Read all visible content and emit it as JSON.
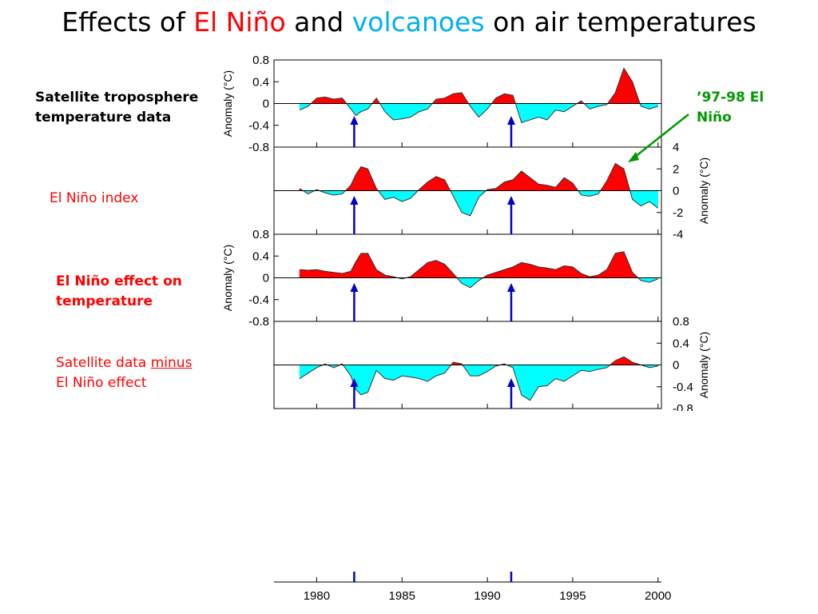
{
  "slide": {
    "title_prefix": "Effects of ",
    "title_elnino": "El Niño",
    "title_and": " and ",
    "title_volcanoes": "volcanoes",
    "title_suffix": " on air temperatures"
  },
  "labels": {
    "satellite_line1": "Satellite troposphere",
    "satellite_line2": "temperature data",
    "elnino_index": "El Niño index",
    "effect_line1": "El Niño effect on",
    "effect_line2": "temperature",
    "minus_part1": "Satellite data ",
    "minus_part2": "minus",
    "minus_line2": "El Niño effect",
    "callout_line1": "’97-98 El",
    "callout_line2": "Niño"
  },
  "colors": {
    "positive_fill": "#ff0000",
    "negative_fill": "#00ffff",
    "volcano_arrow": "#0000cc",
    "callout": "#009900"
  },
  "chart_data": [
    {
      "type": "area",
      "ylabel": "Anomaly (°C)",
      "ylim": [
        -0.8,
        0.8
      ],
      "yticks": [
        "0.8",
        "0.4",
        "0",
        "-0.4",
        "-0.8"
      ],
      "x": [
        1979,
        1979.5,
        1980,
        1980.5,
        1981,
        1981.5,
        1982,
        1982.3,
        1982.6,
        1983,
        1983.5,
        1984,
        1984.5,
        1985,
        1985.5,
        1986,
        1986.5,
        1987,
        1987.5,
        1988,
        1988.5,
        1989,
        1989.5,
        1990,
        1990.5,
        1991,
        1991.5,
        1992,
        1992.5,
        1993,
        1993.5,
        1994,
        1994.5,
        1995,
        1995.5,
        1996,
        1996.5,
        1997,
        1997.5,
        1998,
        1998.5,
        1999,
        1999.5,
        2000
      ],
      "y": [
        -0.12,
        -0.05,
        0.1,
        0.12,
        0.08,
        0.1,
        -0.1,
        -0.22,
        -0.15,
        -0.1,
        0.1,
        -0.15,
        -0.3,
        -0.28,
        -0.25,
        -0.15,
        -0.1,
        0.08,
        0.1,
        0.18,
        0.2,
        -0.05,
        -0.25,
        -0.1,
        0.1,
        0.18,
        0.15,
        -0.35,
        -0.3,
        -0.25,
        -0.3,
        -0.12,
        -0.15,
        -0.05,
        0.05,
        -0.1,
        -0.05,
        -0.02,
        0.2,
        0.65,
        0.4,
        -0.05,
        -0.1,
        -0.05
      ]
    },
    {
      "type": "area",
      "ylabel": "Anomaly (°C)",
      "ylim": [
        -4,
        4
      ],
      "yticks": [
        "4",
        "2",
        "0",
        "-2",
        "-4"
      ],
      "x": [
        1979,
        1979.5,
        1980,
        1980.5,
        1981,
        1981.5,
        1982,
        1982.3,
        1982.6,
        1983,
        1983.5,
        1984,
        1984.5,
        1985,
        1985.5,
        1986,
        1986.5,
        1987,
        1987.5,
        1988,
        1988.5,
        1989,
        1989.5,
        1990,
        1990.5,
        1991,
        1991.5,
        1992,
        1992.5,
        1993,
        1993.5,
        1994,
        1994.5,
        1995,
        1995.5,
        1996,
        1996.5,
        1997,
        1997.5,
        1998,
        1998.5,
        1999,
        1999.5,
        2000
      ],
      "y": [
        0.2,
        -0.3,
        0.1,
        -0.2,
        -0.4,
        -0.3,
        0.5,
        1.5,
        2.2,
        2.0,
        0.2,
        -0.8,
        -0.6,
        -1.0,
        -0.7,
        0.1,
        0.8,
        1.3,
        1.0,
        -0.5,
        -2.0,
        -2.3,
        -0.6,
        0.1,
        0.2,
        0.8,
        1.0,
        1.8,
        1.2,
        0.6,
        0.5,
        0.3,
        1.2,
        0.7,
        -0.4,
        -0.5,
        -0.3,
        0.9,
        2.5,
        2.0,
        -0.8,
        -1.4,
        -1.0,
        -1.6
      ]
    },
    {
      "type": "area",
      "ylabel": "Anomaly (°C)",
      "ylim": [
        -0.8,
        0.8
      ],
      "yticks": [
        "0.8",
        "0.4",
        "0",
        "-0.4",
        "-0.8"
      ],
      "x": [
        1979,
        1979.5,
        1980,
        1980.5,
        1981,
        1981.5,
        1982,
        1982.3,
        1982.6,
        1983,
        1983.5,
        1984,
        1984.5,
        1985,
        1985.5,
        1986,
        1986.5,
        1987,
        1987.5,
        1988,
        1988.5,
        1989,
        1989.5,
        1990,
        1990.5,
        1991,
        1991.5,
        1992,
        1992.5,
        1993,
        1993.5,
        1994,
        1994.5,
        1995,
        1995.5,
        1996,
        1996.5,
        1997,
        1997.5,
        1998,
        1998.5,
        1999,
        1999.5,
        2000
      ],
      "y": [
        0.15,
        0.14,
        0.15,
        0.12,
        0.1,
        0.08,
        0.12,
        0.3,
        0.45,
        0.45,
        0.15,
        0.05,
        0.02,
        -0.02,
        0.02,
        0.15,
        0.28,
        0.32,
        0.25,
        0.08,
        -0.1,
        -0.18,
        -0.05,
        0.05,
        0.1,
        0.15,
        0.2,
        0.28,
        0.25,
        0.2,
        0.18,
        0.15,
        0.22,
        0.2,
        0.08,
        0.02,
        0.05,
        0.15,
        0.45,
        0.48,
        0.1,
        -0.05,
        -0.08,
        -0.02
      ]
    },
    {
      "type": "area",
      "ylabel": "Anomaly (°C)",
      "ylim": [
        -0.8,
        0.8
      ],
      "yticks": [
        "0.8",
        "0.4",
        "0",
        "-0.4",
        "-0.8"
      ],
      "x": [
        1979,
        1979.5,
        1980,
        1980.5,
        1981,
        1981.5,
        1982,
        1982.3,
        1982.6,
        1983,
        1983.5,
        1984,
        1984.5,
        1985,
        1985.5,
        1986,
        1986.5,
        1987,
        1987.5,
        1988,
        1988.5,
        1989,
        1989.5,
        1990,
        1990.5,
        1991,
        1991.5,
        1992,
        1992.5,
        1993,
        1993.5,
        1994,
        1994.5,
        1995,
        1995.5,
        1996,
        1996.5,
        1997,
        1997.5,
        1998,
        1998.5,
        1999,
        1999.5,
        2000
      ],
      "y": [
        -0.25,
        -0.15,
        -0.05,
        0.02,
        -0.05,
        0.02,
        -0.2,
        -0.45,
        -0.55,
        -0.5,
        -0.1,
        -0.25,
        -0.28,
        -0.2,
        -0.22,
        -0.25,
        -0.3,
        -0.2,
        -0.15,
        0.05,
        0.02,
        -0.2,
        -0.2,
        -0.12,
        -0.02,
        0.02,
        -0.05,
        -0.55,
        -0.65,
        -0.4,
        -0.38,
        -0.25,
        -0.3,
        -0.2,
        -0.1,
        -0.12,
        -0.08,
        -0.05,
        0.08,
        0.15,
        0.05,
        0.0,
        -0.05,
        -0.02
      ]
    }
  ],
  "x_axis": {
    "xlim": [
      1977.5,
      2000.2
    ],
    "ticks": [
      1980,
      1985,
      1990,
      1995,
      2000
    ],
    "tick_labels": [
      "1980",
      "1985",
      "1990",
      "1995",
      "2000"
    ]
  },
  "volcanoes": [
    1982.2,
    1991.4
  ]
}
